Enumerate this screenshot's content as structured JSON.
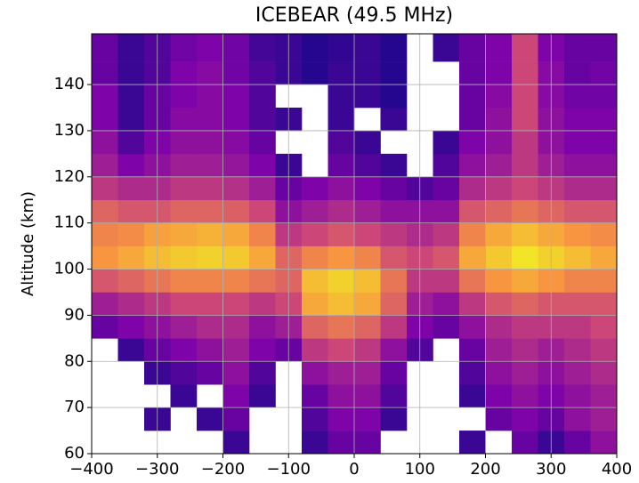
{
  "chart_data": {
    "type": "heatmap",
    "title": "ICEBEAR (49.5 MHz)",
    "y_label": "Altitude (km)",
    "colormap": "plasma",
    "zlim": [
      0,
      1
    ],
    "grid": true,
    "xlim": [
      -400,
      400
    ],
    "ylim": [
      60,
      151
    ],
    "xticks": [
      {
        "value": -400,
        "label": "−400"
      },
      {
        "value": -300,
        "label": "−300"
      },
      {
        "value": -200,
        "label": "−200"
      },
      {
        "value": -100,
        "label": "−100"
      },
      0,
      100,
      200,
      300,
      400
    ],
    "yticks": [
      60,
      70,
      80,
      90,
      100,
      110,
      120,
      130,
      140
    ],
    "x_bins": [
      -400,
      -360,
      -320,
      -280,
      -240,
      -200,
      -160,
      -120,
      -80,
      -40,
      0,
      40,
      80,
      120,
      160,
      200,
      240,
      280,
      320,
      360,
      400
    ],
    "y_bins": [
      60,
      65,
      70,
      75,
      80,
      85,
      90,
      95,
      100,
      105,
      110,
      115,
      120,
      125,
      130,
      135,
      140,
      145,
      151
    ],
    "z": [
      [
        null,
        null,
        null,
        null,
        null,
        0.1,
        null,
        null,
        0.1,
        0.2,
        0.2,
        null,
        null,
        null,
        0.1,
        null,
        0.2,
        0.1,
        0.2,
        0.3
      ],
      [
        null,
        null,
        0.1,
        null,
        0.1,
        0.2,
        null,
        null,
        0.15,
        0.25,
        0.25,
        0.1,
        null,
        null,
        null,
        0.2,
        0.25,
        0.2,
        0.3,
        0.35
      ],
      [
        null,
        null,
        null,
        0.1,
        null,
        0.25,
        0.1,
        null,
        0.2,
        0.3,
        0.3,
        0.15,
        null,
        null,
        0.1,
        0.25,
        0.3,
        0.25,
        0.3,
        0.35
      ],
      [
        null,
        null,
        0.1,
        0.15,
        0.2,
        0.3,
        0.15,
        null,
        0.3,
        0.35,
        0.35,
        0.2,
        null,
        null,
        0.15,
        0.3,
        0.35,
        0.3,
        0.35,
        0.4
      ],
      [
        null,
        0.1,
        0.2,
        0.25,
        0.3,
        0.35,
        0.25,
        0.2,
        0.45,
        0.5,
        0.45,
        0.3,
        0.15,
        null,
        0.2,
        0.35,
        0.4,
        0.35,
        0.4,
        0.45
      ],
      [
        0.2,
        0.25,
        0.3,
        0.35,
        0.4,
        0.4,
        0.3,
        0.35,
        0.6,
        0.65,
        0.6,
        0.45,
        0.25,
        0.2,
        0.3,
        0.4,
        0.45,
        0.45,
        0.45,
        0.5
      ],
      [
        0.35,
        0.4,
        0.45,
        0.5,
        0.5,
        0.5,
        0.45,
        0.5,
        0.8,
        0.85,
        0.8,
        0.6,
        0.35,
        0.3,
        0.45,
        0.55,
        0.6,
        0.55,
        0.55,
        0.55
      ],
      [
        0.55,
        0.6,
        0.65,
        0.7,
        0.7,
        0.7,
        0.65,
        0.6,
        0.85,
        0.9,
        0.85,
        0.65,
        0.45,
        0.45,
        0.65,
        0.75,
        0.8,
        0.75,
        0.7,
        0.7
      ],
      [
        0.75,
        0.8,
        0.85,
        0.88,
        0.9,
        0.88,
        0.8,
        0.6,
        0.7,
        0.75,
        0.7,
        0.55,
        0.5,
        0.55,
        0.8,
        0.88,
        0.95,
        0.9,
        0.85,
        0.8
      ],
      [
        0.7,
        0.72,
        0.78,
        0.8,
        0.82,
        0.8,
        0.7,
        0.45,
        0.5,
        0.55,
        0.5,
        0.45,
        0.4,
        0.45,
        0.7,
        0.8,
        0.85,
        0.8,
        0.75,
        0.72
      ],
      [
        0.6,
        0.55,
        0.55,
        0.6,
        0.6,
        0.58,
        0.5,
        0.3,
        0.35,
        0.4,
        0.35,
        0.3,
        0.3,
        0.3,
        0.55,
        0.6,
        0.65,
        0.6,
        0.55,
        0.55
      ],
      [
        0.45,
        0.4,
        0.4,
        0.45,
        0.45,
        0.42,
        0.35,
        0.2,
        0.25,
        0.3,
        0.25,
        0.2,
        0.15,
        0.2,
        0.4,
        0.45,
        0.5,
        0.45,
        0.4,
        0.4
      ],
      [
        0.35,
        0.25,
        0.3,
        0.35,
        0.35,
        0.32,
        0.25,
        0.1,
        null,
        0.2,
        0.15,
        0.1,
        null,
        0.15,
        0.3,
        0.35,
        0.45,
        0.35,
        0.3,
        0.3
      ],
      [
        0.3,
        0.15,
        0.25,
        0.3,
        0.3,
        0.28,
        0.2,
        null,
        null,
        0.15,
        0.1,
        null,
        null,
        0.1,
        0.25,
        0.3,
        0.45,
        0.3,
        0.25,
        0.25
      ],
      [
        0.25,
        0.1,
        0.2,
        0.28,
        0.28,
        0.25,
        0.15,
        0.1,
        null,
        0.1,
        null,
        0.1,
        null,
        null,
        0.2,
        0.3,
        0.5,
        0.3,
        0.25,
        0.25
      ],
      [
        0.25,
        0.1,
        0.2,
        0.25,
        0.28,
        0.25,
        0.15,
        null,
        null,
        0.1,
        0.1,
        0.05,
        null,
        null,
        0.2,
        0.28,
        0.5,
        0.28,
        0.22,
        0.22
      ],
      [
        0.2,
        0.1,
        0.15,
        0.25,
        0.28,
        0.22,
        0.15,
        0.1,
        0.05,
        0.1,
        0.1,
        0.05,
        null,
        null,
        0.2,
        0.25,
        0.5,
        0.28,
        0.2,
        0.22
      ],
      [
        0.2,
        0.1,
        0.15,
        0.22,
        0.25,
        0.22,
        0.12,
        0.1,
        0.05,
        0.08,
        0.1,
        0.05,
        null,
        0.1,
        0.2,
        0.25,
        0.5,
        0.25,
        0.2,
        0.2
      ]
    ]
  }
}
